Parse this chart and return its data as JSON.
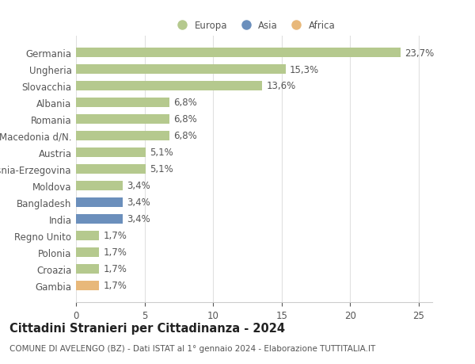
{
  "categories": [
    "Germania",
    "Ungheria",
    "Slovacchia",
    "Albania",
    "Romania",
    "Macedonia d/N.",
    "Austria",
    "Bosnia-Erzegovina",
    "Moldova",
    "Bangladesh",
    "India",
    "Regno Unito",
    "Polonia",
    "Croazia",
    "Gambia"
  ],
  "values": [
    23.7,
    15.3,
    13.6,
    6.8,
    6.8,
    6.8,
    5.1,
    5.1,
    3.4,
    3.4,
    3.4,
    1.7,
    1.7,
    1.7,
    1.7
  ],
  "labels": [
    "23,7%",
    "15,3%",
    "13,6%",
    "6,8%",
    "6,8%",
    "6,8%",
    "5,1%",
    "5,1%",
    "3,4%",
    "3,4%",
    "3,4%",
    "1,7%",
    "1,7%",
    "1,7%",
    "1,7%"
  ],
  "continents": [
    "Europa",
    "Europa",
    "Europa",
    "Europa",
    "Europa",
    "Europa",
    "Europa",
    "Europa",
    "Europa",
    "Asia",
    "Asia",
    "Europa",
    "Europa",
    "Europa",
    "Africa"
  ],
  "colors": {
    "Europa": "#b5c98e",
    "Asia": "#6b8fbc",
    "Africa": "#e8b87a"
  },
  "title_main": "Cittadini Stranieri per Cittadinanza - 2024",
  "title_sub": "COMUNE DI AVELENGO (BZ) - Dati ISTAT al 1° gennaio 2024 - Elaborazione TUTTITALIA.IT",
  "xlim": [
    0,
    26
  ],
  "xticks": [
    0,
    5,
    10,
    15,
    20,
    25
  ],
  "background_color": "#ffffff",
  "bar_height": 0.55,
  "label_fontsize": 8.5,
  "tick_fontsize": 8.5,
  "title_fontsize": 10.5,
  "subtitle_fontsize": 7.5
}
